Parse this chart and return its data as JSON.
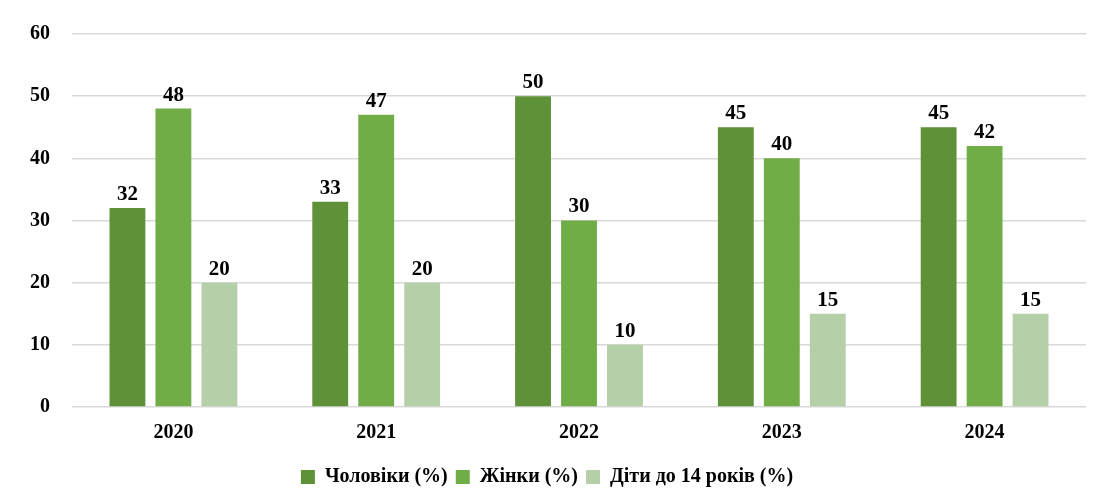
{
  "chart_data": {
    "type": "bar",
    "categories": [
      "2020",
      "2021",
      "2022",
      "2023",
      "2024"
    ],
    "series": [
      {
        "name": "Чоловіки (%)",
        "color": "#5f9139",
        "values": [
          32,
          33,
          50,
          45,
          45
        ]
      },
      {
        "name": "Жінки (%)",
        "color": "#70ad47",
        "values": [
          48,
          47,
          30,
          40,
          42
        ]
      },
      {
        "name": "Діти до 14 років (%)",
        "color": "#b5cfa8",
        "values": [
          20,
          20,
          10,
          15,
          15
        ]
      }
    ],
    "ylim": [
      0,
      60
    ],
    "yticks": [
      0,
      10,
      20,
      30,
      40,
      50,
      60
    ],
    "grid": "y",
    "legend": "bottom",
    "data_labels": true
  }
}
